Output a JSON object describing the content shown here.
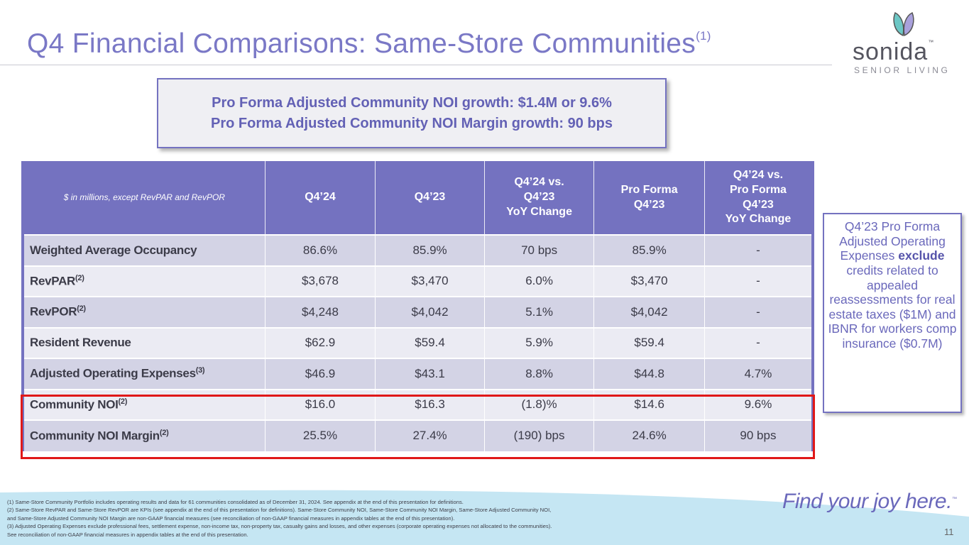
{
  "title": {
    "text": "Q4 Financial Comparisons: Same-Store Communities",
    "footnote_ref": "(1)"
  },
  "logo": {
    "word": "sonida",
    "tm": "™",
    "sub": "SENIOR LIVING"
  },
  "callout": {
    "line1": "Pro Forma Adjusted Community NOI growth: $1.4M or 9.6%",
    "line2": "Pro Forma Adjusted Community NOI Margin growth: 90 bps"
  },
  "table": {
    "headers": [
      "$ in millions, except RevPAR and RevPOR",
      "Q4’24",
      "Q4’23",
      "Q4’24 vs.\nQ4’23\nYoY Change",
      "Pro Forma\nQ4’23",
      "Q4’24 vs.\nPro Forma\nQ4’23\nYoY Change"
    ],
    "rows": [
      {
        "label": "Weighted Average Occupancy",
        "sup": "",
        "values": [
          "86.6%",
          "85.9%",
          "70 bps",
          "85.9%",
          "-"
        ]
      },
      {
        "label": "RevPAR",
        "sup": "(2)",
        "values": [
          "$3,678",
          "$3,470",
          "6.0%",
          "$3,470",
          "-"
        ]
      },
      {
        "label": "RevPOR",
        "sup": "(2)",
        "values": [
          "$4,248",
          "$4,042",
          "5.1%",
          "$4,042",
          "-"
        ]
      },
      {
        "label": "Resident Revenue",
        "sup": "",
        "values": [
          "$62.9",
          "$59.4",
          "5.9%",
          "$59.4",
          "-"
        ]
      },
      {
        "label": "Adjusted Operating Expenses",
        "sup": "(3)",
        "values": [
          "$46.9",
          "$43.1",
          "8.8%",
          "$44.8",
          "4.7%"
        ]
      },
      {
        "label": "Community NOI",
        "sup": "(2)",
        "values": [
          "$16.0",
          "$16.3",
          "(1.8)%",
          "$14.6",
          "9.6%"
        ]
      },
      {
        "label": "Community NOI Margin",
        "sup": "(2)",
        "values": [
          "25.5%",
          "27.4%",
          "(190) bps",
          "24.6%",
          "90 bps"
        ]
      }
    ],
    "highlighted_rows": [
      "Community NOI",
      "Community NOI Margin"
    ]
  },
  "sidenote": {
    "before": "Q4’23 Pro Forma Adjusted Operating Expenses ",
    "bold": "exclude",
    "after": " credits related to appealed reassessments for real estate taxes ($1M) and IBNR for workers comp insurance ($0.7M)"
  },
  "footnotes": [
    "(1) Same-Store Community Portfolio includes operating results and data for 61 communities consolidated as of December 31, 2024. See appendix at the end of this presentation for definitions.",
    "(2) Same-Store RevPAR and Same-Store RevPOR are KPIs (see appendix at the end of this presentation for definitions). Same-Store Community NOI, Same-Store Community NOI Margin, Same-Store Adjusted Community NOI,",
    "and Same-Store Adjusted Community NOI Margin are non-GAAP financial measures (see reconciliation of non-GAAP financial measures in appendix tables at the end of this presentation).",
    "(3) Adjusted Operating Expenses exclude professional fees, settlement expense, non-income tax, non-property tax, casualty gains and losses, and other expenses (corporate operating expenses not allocated to the communities).",
    "See reconciliation of non-GAAP financial measures in appendix tables at the end of this presentation."
  ],
  "tagline": {
    "text": "Find your joy here.",
    "tm": "™"
  },
  "page_number": "11",
  "colors": {
    "accent": "#7472c0",
    "title": "#7a78c6",
    "highlight": "#e01818",
    "row_dark": "#d3d3e5",
    "row_light": "#ebebf3",
    "wave": "#c5e6f3"
  }
}
